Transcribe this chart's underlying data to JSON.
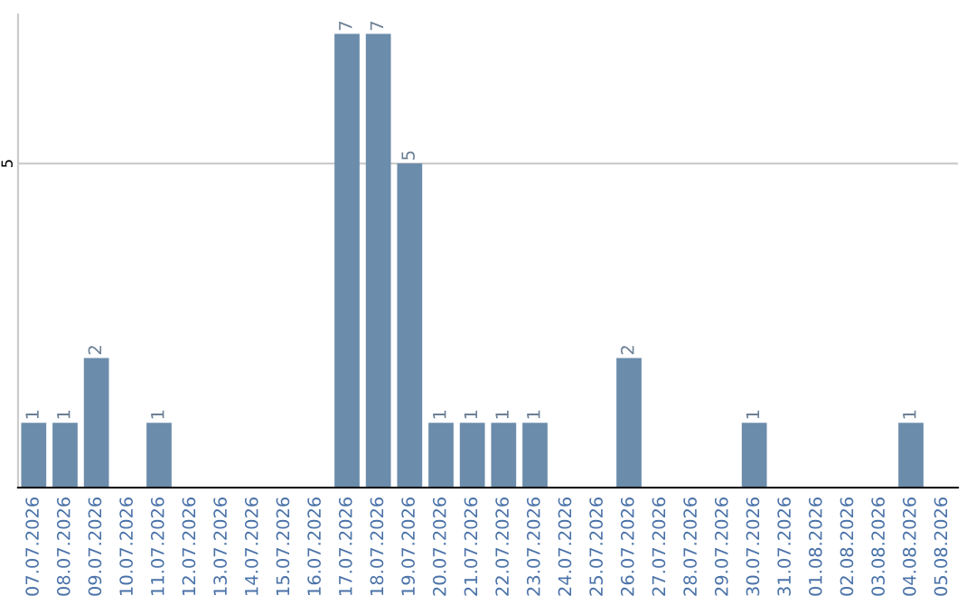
{
  "chart_data": {
    "type": "bar",
    "categories": [
      "07.07.2026",
      "08.07.2026",
      "09.07.2026",
      "10.07.2026",
      "11.07.2026",
      "12.07.2026",
      "13.07.2026",
      "14.07.2026",
      "15.07.2026",
      "16.07.2026",
      "17.07.2026",
      "18.07.2026",
      "19.07.2026",
      "20.07.2026",
      "21.07.2026",
      "22.07.2026",
      "23.07.2026",
      "24.07.2026",
      "25.07.2026",
      "26.07.2026",
      "27.07.2026",
      "28.07.2026",
      "29.07.2026",
      "30.07.2026",
      "31.07.2026",
      "01.08.2026",
      "02.08.2026",
      "03.08.2026",
      "04.08.2026",
      "05.08.2026"
    ],
    "values": [
      1,
      1,
      2,
      0,
      1,
      0,
      0,
      0,
      0,
      0,
      7,
      7,
      5,
      1,
      1,
      1,
      1,
      0,
      0,
      2,
      0,
      0,
      0,
      1,
      0,
      0,
      0,
      0,
      1,
      0
    ],
    "value_labels": [
      "1",
      "1",
      "2",
      null,
      "1",
      null,
      null,
      null,
      null,
      null,
      "7",
      "7",
      "5",
      "1",
      "1",
      "1",
      "1",
      null,
      null,
      "2",
      null,
      null,
      null,
      "1",
      null,
      null,
      null,
      null,
      "1",
      null
    ],
    "color": "#6b8cab",
    "ylim": [
      0,
      7.3
    ],
    "yticks": [
      5
    ],
    "grid": "y"
  }
}
